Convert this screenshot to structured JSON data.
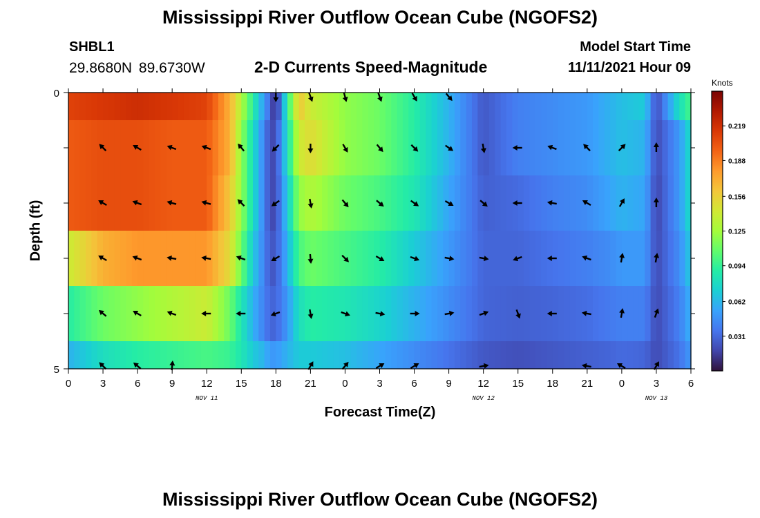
{
  "header": {
    "title": "Mississippi River Outflow Ocean Cube (NGOFS2)",
    "station": "SHBL1",
    "coords": "29.8680N  89.6730W",
    "subtitle": "2-D Currents Speed-Magnitude",
    "model_start_label": "Model Start Time",
    "model_start_value": "11/11/2021 Hour 09"
  },
  "footer": {
    "title": "Mississippi River Outflow Ocean Cube (NGOFS2)"
  },
  "chart_data": {
    "type": "heatmap",
    "xlabel": "Forecast Time(Z)",
    "ylabel": "Depth (ft)",
    "units": "Knots",
    "x_tick_labels": [
      "0",
      "3",
      "6",
      "9",
      "12",
      "15",
      "18",
      "21",
      "0",
      "3",
      "6",
      "9",
      "12",
      "15",
      "18",
      "21",
      "0",
      "3",
      "6"
    ],
    "x_hours": [
      0,
      3,
      6,
      9,
      12,
      15,
      18,
      21,
      24,
      27,
      30,
      33,
      36,
      39,
      42,
      45,
      48,
      51,
      54
    ],
    "date_labels": [
      {
        "text": "NOV 11",
        "hour": 12
      },
      {
        "text": "NOV 12",
        "hour": 36
      },
      {
        "text": "NOV 13",
        "hour": 51
      }
    ],
    "y_tick_labels": [
      "0",
      "5"
    ],
    "ylim": [
      0,
      5
    ],
    "depth_levels": [
      0,
      1,
      2,
      3,
      4,
      5
    ],
    "colorbar": {
      "min": 0.0,
      "max": 0.25,
      "tick_labels": [
        "0.219",
        "0.188",
        "0.156",
        "0.125",
        "0.094",
        "0.062",
        "0.031"
      ],
      "tick_values": [
        0.219,
        0.188,
        0.156,
        0.125,
        0.094,
        0.062,
        0.031
      ],
      "stops": [
        "#30123b",
        "#4145ab",
        "#4675ed",
        "#39a2fc",
        "#1bcfd4",
        "#24eca6",
        "#61fc6c",
        "#a4fc3b",
        "#d1e834",
        "#f3c63a",
        "#fe9b2d",
        "#f36315",
        "#d93806",
        "#b11901",
        "#7a0403"
      ]
    },
    "arrow_hours": [
      3,
      6,
      9,
      12,
      15,
      18,
      21,
      24,
      27,
      30,
      33,
      36,
      39,
      42,
      45,
      48,
      51
    ],
    "arrow_depths": [
      0,
      1,
      2,
      3,
      4,
      5
    ],
    "arrow_directions_deg": [
      [
        null,
        null,
        null,
        null,
        null,
        180,
        160,
        165,
        160,
        150,
        140,
        null,
        null,
        null,
        null,
        null,
        null
      ],
      [
        315,
        300,
        290,
        290,
        320,
        225,
        180,
        150,
        140,
        135,
        125,
        170,
        270,
        290,
        315,
        45,
        0
      ],
      [
        300,
        290,
        285,
        285,
        315,
        235,
        170,
        140,
        130,
        125,
        120,
        130,
        270,
        280,
        300,
        30,
        0
      ],
      [
        300,
        290,
        280,
        280,
        290,
        240,
        175,
        135,
        120,
        110,
        100,
        100,
        250,
        270,
        290,
        10,
        10
      ],
      [
        310,
        300,
        290,
        270,
        270,
        250,
        170,
        110,
        100,
        90,
        80,
        70,
        160,
        270,
        280,
        10,
        20
      ],
      [
        315,
        310,
        5,
        null,
        null,
        null,
        30,
        40,
        60,
        60,
        null,
        80,
        null,
        null,
        280,
        300,
        30
      ]
    ],
    "series": [
      {
        "hours": [
          0,
          3,
          6,
          9,
          12,
          14,
          15,
          16,
          17,
          17.5,
          18,
          19,
          20,
          21,
          24,
          27,
          30,
          33,
          36,
          39,
          42,
          45,
          47,
          48,
          50,
          51,
          53,
          54
        ],
        "values": [
          0.21,
          0.215,
          0.22,
          0.215,
          0.21,
          0.17,
          0.13,
          0.09,
          0.05,
          0.03,
          0.005,
          0.09,
          0.16,
          0.14,
          0.12,
          0.11,
          0.09,
          0.06,
          0.025,
          0.04,
          0.045,
          0.05,
          0.06,
          0.065,
          0.07,
          0.02,
          0.08,
          0.1
        ]
      },
      {
        "hours": [
          0,
          3,
          6,
          9,
          12,
          14,
          15,
          16,
          17,
          17.5,
          18,
          19,
          20,
          21,
          24,
          27,
          30,
          33,
          36,
          39,
          42,
          45,
          47,
          48,
          50,
          51,
          53,
          54
        ],
        "values": [
          0.2,
          0.205,
          0.205,
          0.2,
          0.2,
          0.17,
          0.12,
          0.08,
          0.04,
          0.02,
          0.02,
          0.08,
          0.14,
          0.15,
          0.12,
          0.11,
          0.09,
          0.06,
          0.025,
          0.04,
          0.045,
          0.05,
          0.06,
          0.065,
          0.06,
          0.02,
          0.05,
          0.08
        ]
      },
      {
        "hours": [
          0,
          3,
          6,
          9,
          12,
          14,
          15,
          16,
          17,
          17.5,
          18,
          19,
          20,
          21,
          24,
          27,
          30,
          33,
          36,
          39,
          42,
          45,
          47,
          48,
          50,
          51,
          53,
          54
        ],
        "values": [
          0.2,
          0.205,
          0.205,
          0.2,
          0.2,
          0.16,
          0.12,
          0.08,
          0.04,
          0.02,
          0.02,
          0.07,
          0.12,
          0.13,
          0.11,
          0.1,
          0.085,
          0.055,
          0.028,
          0.032,
          0.04,
          0.045,
          0.055,
          0.06,
          0.055,
          0.018,
          0.05,
          0.08
        ]
      },
      {
        "hours": [
          0,
          3,
          6,
          9,
          12,
          14,
          15,
          16,
          17,
          17.5,
          18,
          19,
          20,
          21,
          24,
          27,
          30,
          33,
          36,
          39,
          42,
          45,
          47,
          48,
          50,
          51,
          53,
          54
        ],
        "values": [
          0.14,
          0.17,
          0.18,
          0.18,
          0.18,
          0.15,
          0.11,
          0.07,
          0.04,
          0.025,
          0.025,
          0.06,
          0.1,
          0.11,
          0.1,
          0.09,
          0.07,
          0.05,
          0.03,
          0.03,
          0.035,
          0.04,
          0.045,
          0.05,
          0.05,
          0.02,
          0.045,
          0.07
        ]
      },
      {
        "hours": [
          0,
          3,
          6,
          9,
          12,
          14,
          15,
          16,
          17,
          17.5,
          18,
          19,
          20,
          21,
          24,
          27,
          30,
          33,
          36,
          39,
          42,
          45,
          47,
          48,
          50,
          51,
          53,
          54
        ],
        "values": [
          0.09,
          0.11,
          0.12,
          0.13,
          0.14,
          0.11,
          0.085,
          0.06,
          0.04,
          0.03,
          0.03,
          0.05,
          0.08,
          0.09,
          0.085,
          0.075,
          0.06,
          0.045,
          0.03,
          0.028,
          0.03,
          0.033,
          0.038,
          0.04,
          0.04,
          0.02,
          0.04,
          0.06
        ]
      },
      {
        "hours": [
          0,
          3,
          6,
          9,
          12,
          14,
          15,
          16,
          17,
          17.5,
          18,
          19,
          20,
          21,
          24,
          27,
          30,
          33,
          36,
          39,
          42,
          45,
          47,
          48,
          50,
          51,
          53,
          54
        ],
        "values": [
          0.06,
          0.08,
          0.09,
          0.095,
          0.1,
          0.095,
          0.085,
          0.07,
          0.06,
          0.05,
          0.05,
          0.06,
          0.07,
          0.07,
          0.065,
          0.055,
          0.045,
          0.035,
          0.025,
          0.022,
          0.025,
          0.028,
          0.03,
          0.032,
          0.03,
          0.02,
          0.035,
          0.05
        ]
      }
    ]
  }
}
